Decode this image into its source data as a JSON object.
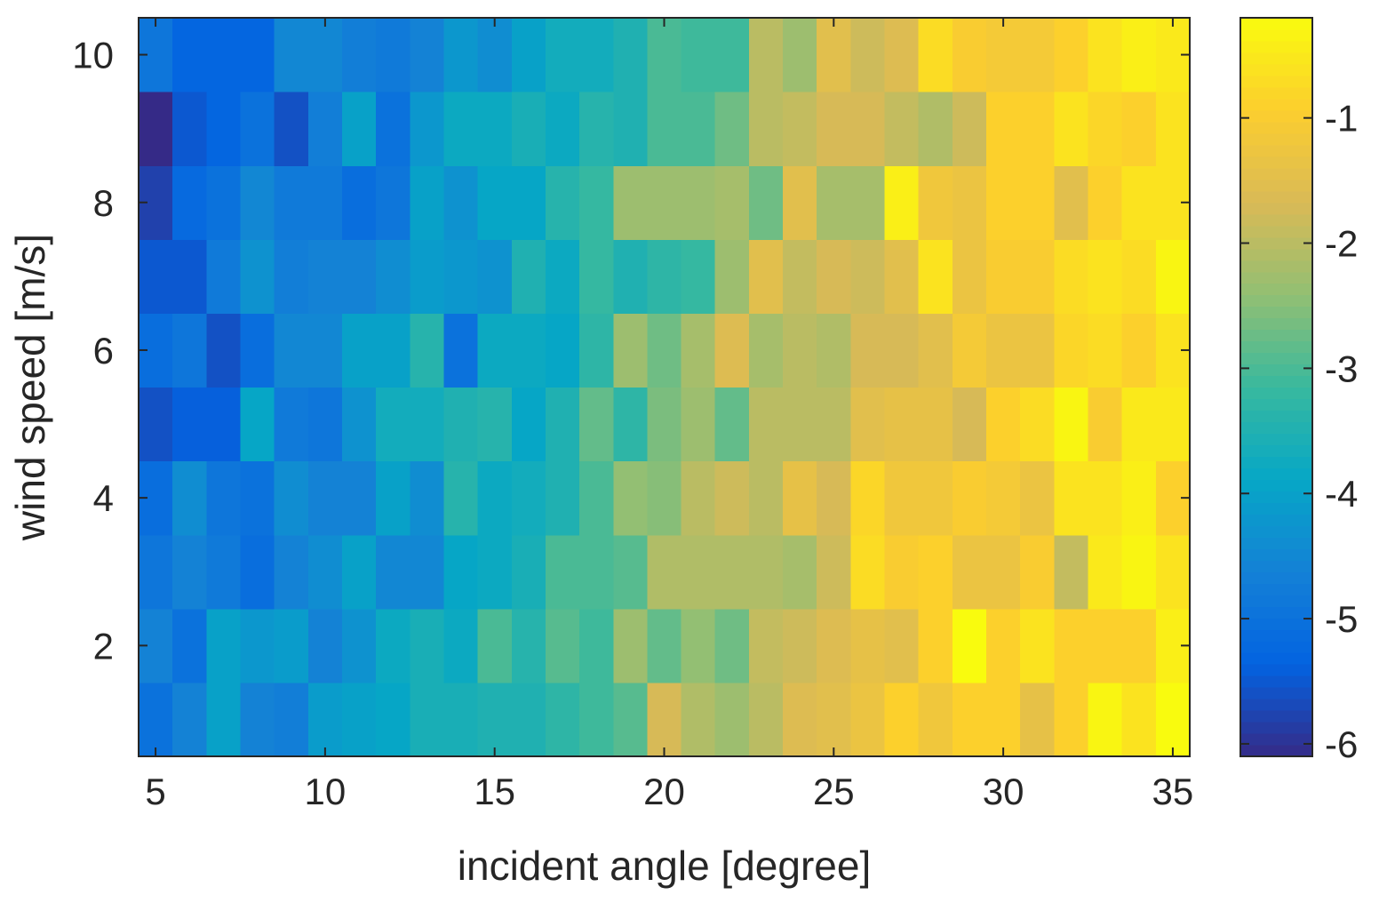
{
  "chart_data": {
    "type": "heatmap",
    "title": "",
    "xlabel": "incident angle [degree]",
    "ylabel": "wind speed [m/s]",
    "x": [
      5,
      6,
      7,
      8,
      9,
      10,
      11,
      12,
      13,
      14,
      15,
      16,
      17,
      18,
      19,
      20,
      21,
      22,
      23,
      24,
      25,
      26,
      27,
      28,
      29,
      30,
      31,
      32,
      33,
      34,
      35
    ],
    "y": [
      1,
      2,
      3,
      4,
      5,
      6,
      7,
      8,
      9,
      10
    ],
    "xlim": [
      4.5,
      35.5
    ],
    "ylim": [
      0.5,
      10.5
    ],
    "xticks": [
      5,
      10,
      15,
      20,
      25,
      30,
      35
    ],
    "yticks": [
      2,
      4,
      6,
      8,
      10
    ],
    "colorbar": {
      "limits": [
        -6.1,
        -0.2
      ],
      "ticks": [
        -6,
        -5,
        -4,
        -3,
        -2,
        -1
      ],
      "colormap": "parula"
    },
    "values": [
      [
        -5.0,
        -4.6,
        -4.0,
        -4.6,
        -4.7,
        -4.1,
        -4.0,
        -3.9,
        -3.6,
        -3.6,
        -3.5,
        -3.5,
        -3.3,
        -3.1,
        -2.9,
        -1.7,
        -2.1,
        -2.3,
        -2.0,
        -1.6,
        -1.5,
        -1.3,
        -0.9,
        -1.2,
        -0.9,
        -0.9,
        -1.4,
        -0.9,
        -0.3,
        -0.6,
        -0.2
      ],
      [
        -4.6,
        -5.0,
        -4.0,
        -4.2,
        -4.1,
        -4.6,
        -4.3,
        -3.8,
        -3.6,
        -3.8,
        -3.0,
        -3.4,
        -2.9,
        -3.1,
        -2.3,
        -2.8,
        -2.4,
        -2.7,
        -1.9,
        -1.8,
        -1.6,
        -1.4,
        -1.5,
        -0.9,
        -0.2,
        -0.9,
        -0.6,
        -0.9,
        -0.9,
        -0.9,
        -0.4
      ],
      [
        -4.9,
        -4.6,
        -4.8,
        -5.1,
        -4.6,
        -4.4,
        -4.0,
        -4.5,
        -4.5,
        -3.9,
        -3.8,
        -3.6,
        -3.0,
        -3.0,
        -2.9,
        -2.1,
        -2.1,
        -2.1,
        -2.1,
        -2.2,
        -1.8,
        -0.7,
        -1.0,
        -0.9,
        -1.3,
        -1.3,
        -1.0,
        -1.9,
        -0.5,
        -0.3,
        -0.6
      ],
      [
        -5.1,
        -4.4,
        -4.9,
        -5.0,
        -4.4,
        -4.6,
        -4.6,
        -4.0,
        -4.4,
        -3.4,
        -3.8,
        -3.7,
        -3.5,
        -3.0,
        -2.4,
        -2.5,
        -2.0,
        -1.8,
        -2.0,
        -1.4,
        -1.7,
        -0.8,
        -1.2,
        -1.2,
        -1.0,
        -1.1,
        -1.3,
        -0.6,
        -0.6,
        -0.4,
        -0.9
      ],
      [
        -5.6,
        -5.4,
        -5.4,
        -3.9,
        -4.8,
        -4.9,
        -4.3,
        -3.7,
        -3.7,
        -3.5,
        -3.4,
        -3.9,
        -3.5,
        -2.8,
        -3.3,
        -2.6,
        -2.3,
        -2.8,
        -2.0,
        -2.0,
        -2.0,
        -1.5,
        -1.4,
        -1.4,
        -1.7,
        -0.9,
        -0.7,
        -0.3,
        -1.0,
        -0.5,
        -0.5
      ],
      [
        -5.1,
        -4.9,
        -5.6,
        -5.1,
        -4.5,
        -4.5,
        -4.0,
        -4.0,
        -3.4,
        -5.0,
        -3.8,
        -3.8,
        -3.9,
        -3.3,
        -2.3,
        -2.7,
        -2.2,
        -1.6,
        -2.2,
        -2.0,
        -2.1,
        -1.7,
        -1.7,
        -1.5,
        -1.1,
        -1.3,
        -1.3,
        -0.8,
        -0.7,
        -0.9,
        -0.6
      ],
      [
        -5.5,
        -5.5,
        -4.8,
        -4.3,
        -4.7,
        -4.6,
        -4.6,
        -4.4,
        -4.1,
        -4.2,
        -4.3,
        -3.5,
        -3.8,
        -3.2,
        -3.5,
        -3.3,
        -3.2,
        -2.3,
        -1.5,
        -1.9,
        -1.7,
        -1.8,
        -1.5,
        -0.6,
        -1.3,
        -1.0,
        -1.0,
        -0.7,
        -0.6,
        -0.7,
        -0.3
      ],
      [
        -5.8,
        -5.2,
        -5.0,
        -4.5,
        -4.8,
        -4.8,
        -5.1,
        -4.9,
        -4.0,
        -4.3,
        -3.9,
        -3.9,
        -3.4,
        -3.2,
        -2.3,
        -2.3,
        -2.3,
        -2.2,
        -2.7,
        -1.5,
        -2.2,
        -2.2,
        -0.4,
        -1.2,
        -1.3,
        -0.9,
        -0.9,
        -1.5,
        -0.9,
        -0.6,
        -0.6
      ],
      [
        -6.1,
        -5.5,
        -5.3,
        -5.0,
        -5.6,
        -4.7,
        -4.0,
        -5.0,
        -4.2,
        -3.8,
        -3.8,
        -3.6,
        -3.8,
        -3.4,
        -3.5,
        -3.0,
        -3.0,
        -2.7,
        -2.0,
        -1.9,
        -1.7,
        -1.7,
        -1.9,
        -2.1,
        -1.8,
        -0.9,
        -0.9,
        -0.6,
        -0.8,
        -0.9,
        -0.6
      ],
      [
        -4.9,
        -5.3,
        -5.3,
        -5.3,
        -4.5,
        -4.5,
        -4.7,
        -4.8,
        -4.6,
        -4.2,
        -4.4,
        -4.0,
        -3.7,
        -3.7,
        -3.5,
        -3.0,
        -3.1,
        -3.1,
        -2.0,
        -2.3,
        -1.5,
        -1.8,
        -1.6,
        -0.7,
        -1.0,
        -1.1,
        -1.1,
        -0.9,
        -0.6,
        -0.4,
        -0.5
      ]
    ]
  }
}
